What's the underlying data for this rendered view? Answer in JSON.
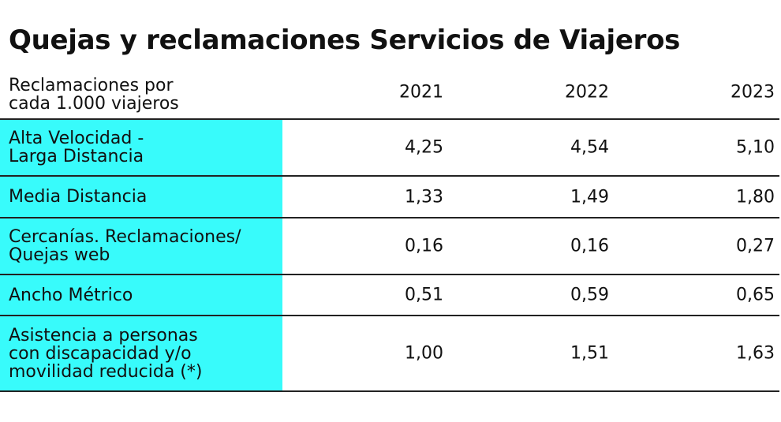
{
  "title": "Quejas y reclamaciones Servicios de Viajeros",
  "chart_data": {
    "type": "table",
    "header_label": "Reclamaciones por\ncada 1.000 viajeros",
    "columns": [
      "2021",
      "2022",
      "2023"
    ],
    "rows": [
      {
        "label": "Alta Velocidad -\nLarga Distancia",
        "values": [
          "4,25",
          "4,54",
          "5,10"
        ]
      },
      {
        "label": "Media Distancia",
        "values": [
          "1,33",
          "1,49",
          "1,80"
        ]
      },
      {
        "label": "Cercanías. Reclamaciones/\nQuejas web",
        "values": [
          "0,16",
          "0,16",
          "0,27"
        ]
      },
      {
        "label": "Ancho Métrico",
        "values": [
          "0,51",
          "0,59",
          "0,65"
        ]
      },
      {
        "label": "Asistencia a personas\ncon discapacidad y/o\nmovilidad reducida (*)",
        "values": [
          "1,00",
          "1,51",
          "1,63"
        ]
      }
    ]
  },
  "colors": {
    "label_background": "#38fbfb",
    "rule": "#222222"
  }
}
